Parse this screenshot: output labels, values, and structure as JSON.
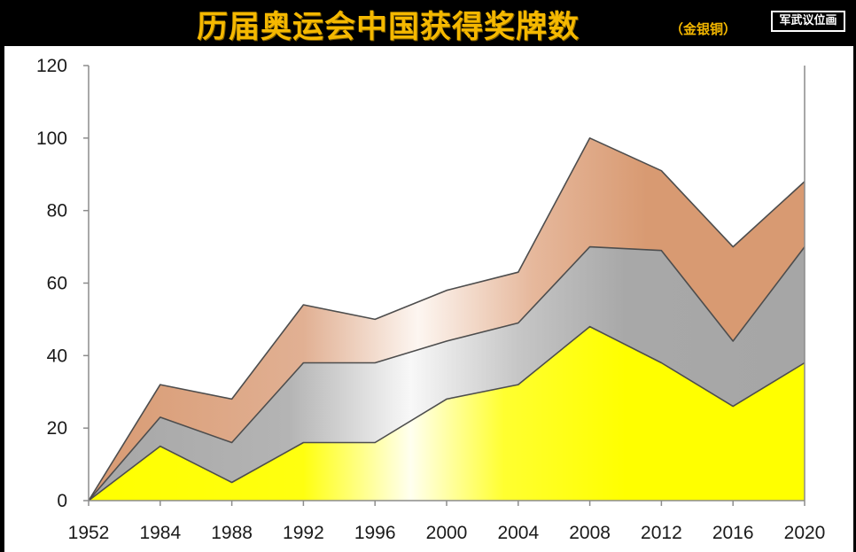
{
  "header": {
    "title": "历届奥运会中国获得奖牌数",
    "subtitle": "（金银铜）",
    "logo_text": "军武议位画"
  },
  "chart_data": {
    "type": "area",
    "stacked": true,
    "categories": [
      "1952",
      "1984",
      "1988",
      "1992",
      "1996",
      "2000",
      "2004",
      "2008",
      "2012",
      "2016",
      "2020"
    ],
    "series": [
      {
        "values": [
          0,
          15,
          5,
          16,
          16,
          28,
          32,
          48,
          38,
          26,
          38
        ]
      },
      {
        "values": [
          0,
          8,
          11,
          22,
          22,
          16,
          17,
          22,
          31,
          18,
          32
        ]
      },
      {
        "values": [
          0,
          9,
          12,
          16,
          12,
          14,
          14,
          30,
          22,
          26,
          18
        ]
      }
    ],
    "ylim": [
      0,
      120
    ],
    "yticks": [
      "0",
      "20",
      "40",
      "60",
      "80",
      "100",
      "120"
    ],
    "grid": false,
    "legend": "none",
    "colors": {
      "gold": "#ffff00",
      "silver": "#a8a8a8",
      "bronze": "#d89c74",
      "outline": "#4d4d4d",
      "axis": "#8c8c8c",
      "title": "#f5b800"
    }
  }
}
